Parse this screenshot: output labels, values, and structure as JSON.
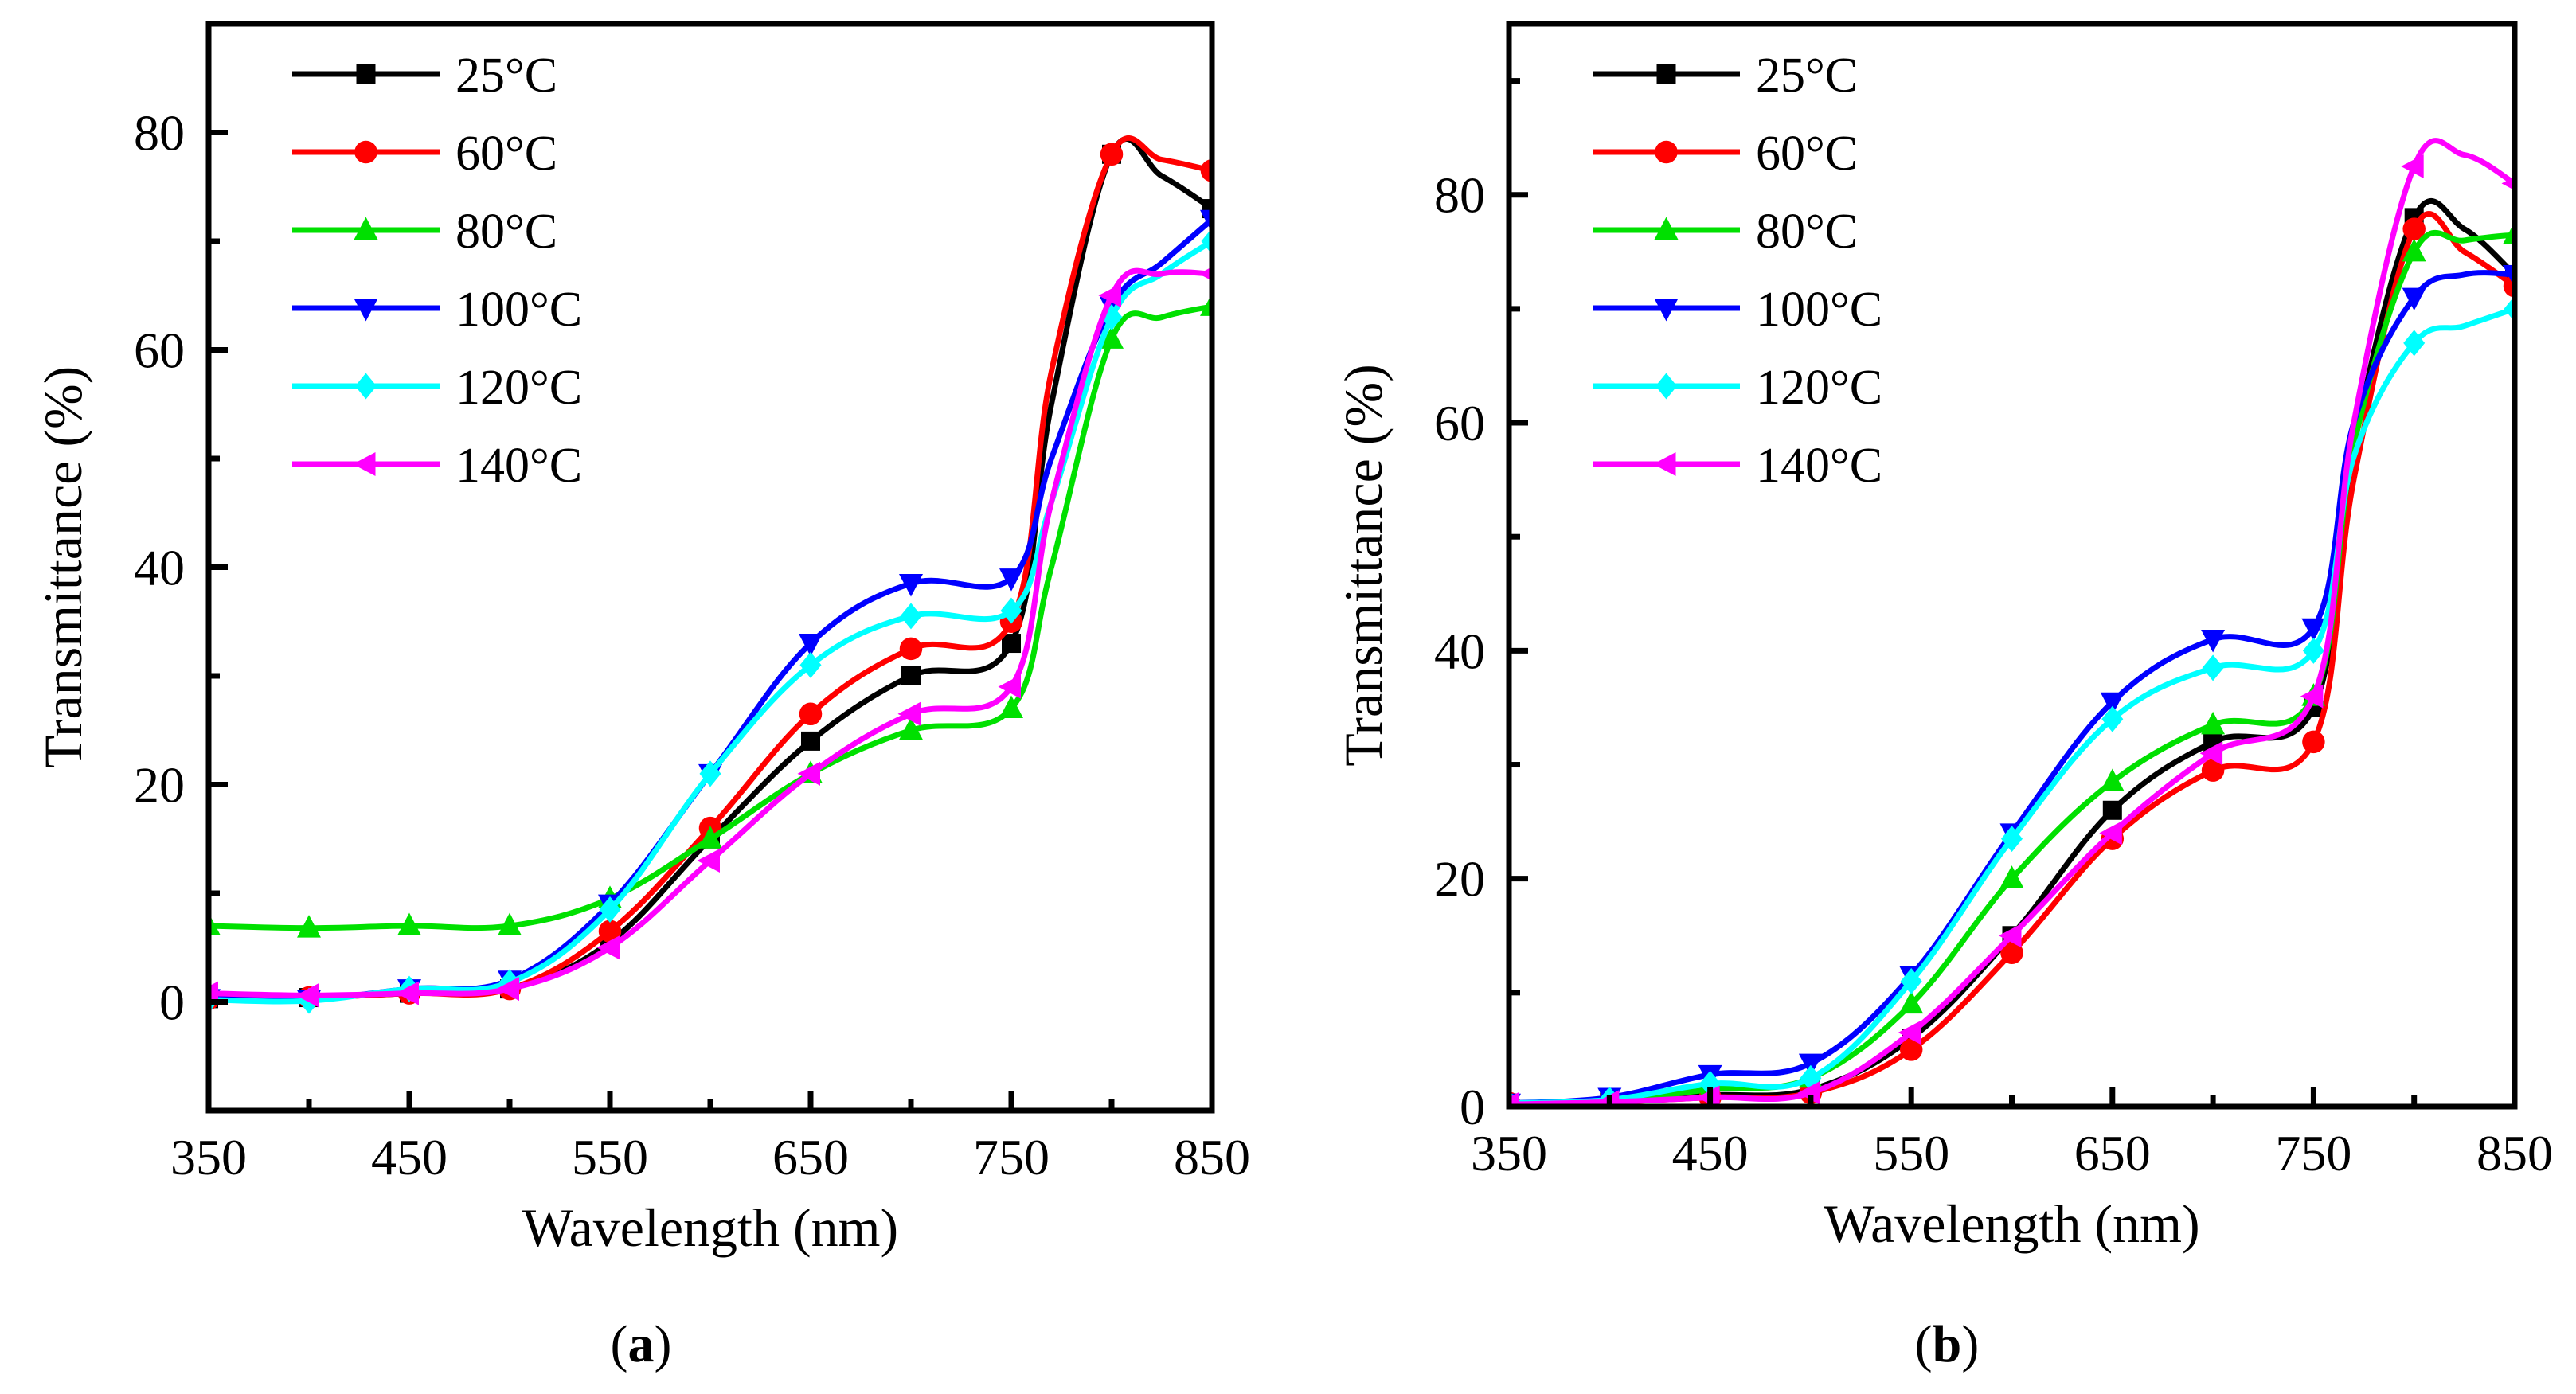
{
  "chart_data": [
    {
      "type": "line",
      "panel": "a",
      "caption_letter": "a",
      "xlabel": "Wavelength (nm)",
      "ylabel": "Transmittance (%)",
      "xlim": [
        350,
        850
      ],
      "ylim": [
        -10,
        90
      ],
      "xticks": [
        350,
        450,
        550,
        650,
        750,
        850
      ],
      "xticks_minor": [
        400,
        500,
        600,
        700,
        800
      ],
      "yticks": [
        0,
        20,
        40,
        60,
        80
      ],
      "yticks_minor": [
        -10,
        10,
        30,
        50,
        70,
        90
      ],
      "legend_position": "top-left",
      "x": [
        350,
        400,
        450,
        500,
        550,
        600,
        650,
        700,
        750,
        770,
        800,
        825,
        850
      ],
      "series": [
        {
          "name": "25°C",
          "color": "#000000",
          "marker": "square",
          "values": [
            0.3,
            0.4,
            0.8,
            1.2,
            5.5,
            15,
            24,
            30,
            33,
            55,
            78,
            76,
            73
          ]
        },
        {
          "name": "60°C",
          "color": "#ff0000",
          "marker": "circle",
          "values": [
            0.3,
            0.4,
            0.8,
            1.2,
            6.5,
            16,
            26.5,
            32.5,
            35,
            58,
            78,
            77.5,
            76.5
          ]
        },
        {
          "name": "80°C",
          "color": "#00e000",
          "marker": "triangle-up",
          "values": [
            7,
            6.8,
            7,
            7,
            9.5,
            15,
            21,
            25,
            27,
            40,
            61,
            63,
            64
          ]
        },
        {
          "name": "100°C",
          "color": "#0000ff",
          "marker": "triangle-down",
          "values": [
            0.3,
            0.2,
            1.2,
            2.0,
            9,
            21,
            33,
            38.5,
            39,
            50,
            64,
            68,
            72
          ]
        },
        {
          "name": "120°C",
          "color": "#00ffff",
          "marker": "diamond",
          "values": [
            0.2,
            0.1,
            1.2,
            1.8,
            8.5,
            21,
            31,
            35.5,
            36,
            46,
            63,
            67,
            70
          ]
        },
        {
          "name": "140°C",
          "color": "#ff00ff",
          "marker": "triangle-left",
          "values": [
            0.8,
            0.6,
            0.8,
            1.2,
            5,
            13,
            21,
            26.5,
            29,
            46,
            65,
            67,
            67
          ]
        }
      ]
    },
    {
      "type": "line",
      "panel": "b",
      "caption_letter": "b",
      "xlabel": "Wavelength (nm)",
      "ylabel": "Transmittance (%)",
      "xlim": [
        350,
        850
      ],
      "ylim": [
        0,
        95
      ],
      "xticks": [
        350,
        450,
        550,
        650,
        750,
        850
      ],
      "xticks_minor": [
        400,
        500,
        600,
        700,
        800
      ],
      "yticks": [
        0,
        20,
        40,
        60,
        80
      ],
      "yticks_minor": [
        10,
        30,
        50,
        70,
        90
      ],
      "legend_position": "top-left",
      "x": [
        350,
        400,
        450,
        500,
        550,
        600,
        650,
        700,
        750,
        770,
        800,
        825,
        850
      ],
      "series": [
        {
          "name": "25°C",
          "color": "#000000",
          "marker": "square",
          "values": [
            0.3,
            0.5,
            1,
            1.5,
            6,
            15,
            26,
            32,
            35,
            58,
            78,
            77,
            73
          ]
        },
        {
          "name": "60°C",
          "color": "#ff0000",
          "marker": "circle",
          "values": [
            0.3,
            0.4,
            0.8,
            1.2,
            5,
            13.5,
            23.5,
            29.5,
            32,
            55,
            77,
            75,
            72
          ]
        },
        {
          "name": "80°C",
          "color": "#00e000",
          "marker": "triangle-up",
          "values": [
            0.3,
            0.5,
            1.5,
            2.5,
            9,
            20,
            28.5,
            33.5,
            36,
            58,
            75,
            76,
            76.5
          ]
        },
        {
          "name": "100°C",
          "color": "#0000ff",
          "marker": "triangle-down",
          "values": [
            0.3,
            0.8,
            2.8,
            3.8,
            11.5,
            24,
            35.5,
            41,
            42,
            60,
            71,
            73,
            73
          ]
        },
        {
          "name": "120°C",
          "color": "#00ffff",
          "marker": "diamond",
          "values": [
            0.3,
            0.6,
            2.0,
            2.5,
            11,
            23.5,
            34,
            38.5,
            40,
            57,
            67,
            68.5,
            70
          ]
        },
        {
          "name": "140°C",
          "color": "#ff00ff",
          "marker": "triangle-left",
          "values": [
            0.2,
            0.4,
            0.8,
            1.2,
            6.5,
            15,
            24,
            31,
            36,
            60,
            82.5,
            83.5,
            81
          ]
        }
      ]
    }
  ]
}
